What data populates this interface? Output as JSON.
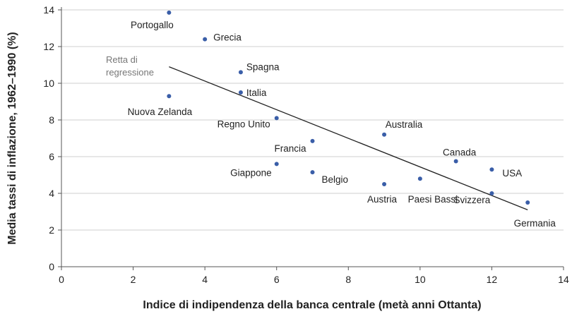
{
  "chart_data": {
    "type": "scatter",
    "title": "",
    "xlabel": "Indice di indipendenza della banca centrale (metà anni Ottanta)",
    "ylabel": "Media tassi di inflazione, 1962–1990 (%)",
    "xlim": [
      0,
      14
    ],
    "ylim": [
      0,
      14
    ],
    "xticks": [
      0,
      2,
      4,
      6,
      8,
      10,
      12,
      14
    ],
    "yticks": [
      0,
      2,
      4,
      6,
      8,
      10,
      12,
      14
    ],
    "grid": "horizontal",
    "point_color": "#3a5ea8",
    "points": [
      {
        "label": "Portogallo",
        "x": 3,
        "y": 13.85
      },
      {
        "label": "Grecia",
        "x": 4,
        "y": 12.4
      },
      {
        "label": "Spagna",
        "x": 5,
        "y": 10.6
      },
      {
        "label": "Italia",
        "x": 5,
        "y": 9.5
      },
      {
        "label": "Nuova Zelanda",
        "x": 3,
        "y": 9.3
      },
      {
        "label": "Regno Unito",
        "x": 6,
        "y": 8.1
      },
      {
        "label": "Australia",
        "x": 9,
        "y": 7.2
      },
      {
        "label": "Francia",
        "x": 7,
        "y": 6.85
      },
      {
        "label": "Canada",
        "x": 11,
        "y": 5.75
      },
      {
        "label": "Giappone",
        "x": 6,
        "y": 5.6
      },
      {
        "label": "USA",
        "x": 12,
        "y": 5.3
      },
      {
        "label": "Belgio",
        "x": 7,
        "y": 5.15
      },
      {
        "label": "Paesi Bassi",
        "x": 10,
        "y": 4.8
      },
      {
        "label": "Austria",
        "x": 9,
        "y": 4.5
      },
      {
        "label": "Svizzera",
        "x": 12,
        "y": 4.0
      },
      {
        "label": "Germania",
        "x": 13,
        "y": 3.5
      }
    ],
    "regression_line": {
      "label_lines": [
        "Retta di",
        "regressione"
      ],
      "from": [
        3,
        10.9
      ],
      "to": [
        13,
        3.1
      ]
    }
  }
}
